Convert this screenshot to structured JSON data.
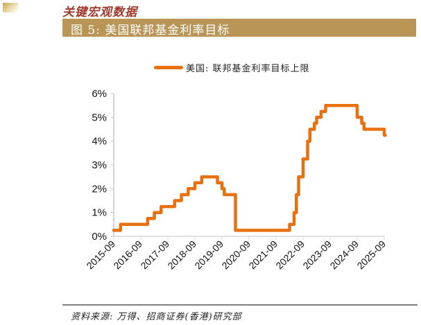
{
  "header": {
    "brand": "关键宏观数据",
    "figure_title": "图 5:  美国联邦基金利率目标",
    "band_color": "#b99657",
    "brand_color": "#a0392e"
  },
  "legend": {
    "label": "美国: 联邦基金利率目标上限",
    "color": "#e8700f"
  },
  "footer": {
    "source": "资料来源: 万得、招商证券(香港)研究部"
  },
  "chart_data": {
    "type": "line",
    "step": true,
    "title": "美国联邦基金利率目标",
    "xlabel": "",
    "ylabel": "",
    "ylim": [
      0,
      6
    ],
    "y_ticks": [
      "0%",
      "1%",
      "2%",
      "3%",
      "4%",
      "5%",
      "6%"
    ],
    "x_ticks": [
      "2015-09",
      "2016-09",
      "2017-09",
      "2018-09",
      "2019-09",
      "2020-09",
      "2021-09",
      "2022-09",
      "2023-09",
      "2024-09",
      "2025-09"
    ],
    "grid": false,
    "legend_position": "top",
    "series": [
      {
        "name": "美国: 联邦基金利率目标上限",
        "color": "#e8700f",
        "points": [
          [
            "2015-09",
            0.25
          ],
          [
            "2015-12",
            0.5
          ],
          [
            "2016-12",
            0.75
          ],
          [
            "2017-03",
            1.0
          ],
          [
            "2017-06",
            1.25
          ],
          [
            "2017-12",
            1.5
          ],
          [
            "2018-03",
            1.75
          ],
          [
            "2018-06",
            2.0
          ],
          [
            "2018-09",
            2.25
          ],
          [
            "2018-12",
            2.5
          ],
          [
            "2019-07",
            2.25
          ],
          [
            "2019-09",
            2.0
          ],
          [
            "2019-10",
            1.75
          ],
          [
            "2020-03",
            1.25
          ],
          [
            "2020-03",
            0.25
          ],
          [
            "2022-03",
            0.5
          ],
          [
            "2022-05",
            1.0
          ],
          [
            "2022-06",
            1.75
          ],
          [
            "2022-07",
            2.5
          ],
          [
            "2022-09",
            3.25
          ],
          [
            "2022-11",
            4.0
          ],
          [
            "2022-12",
            4.5
          ],
          [
            "2023-02",
            4.75
          ],
          [
            "2023-03",
            5.0
          ],
          [
            "2023-05",
            5.25
          ],
          [
            "2023-07",
            5.5
          ],
          [
            "2024-09",
            5.0
          ],
          [
            "2024-11",
            4.75
          ],
          [
            "2024-12",
            4.5
          ],
          [
            "2025-09",
            4.25
          ]
        ]
      }
    ]
  }
}
